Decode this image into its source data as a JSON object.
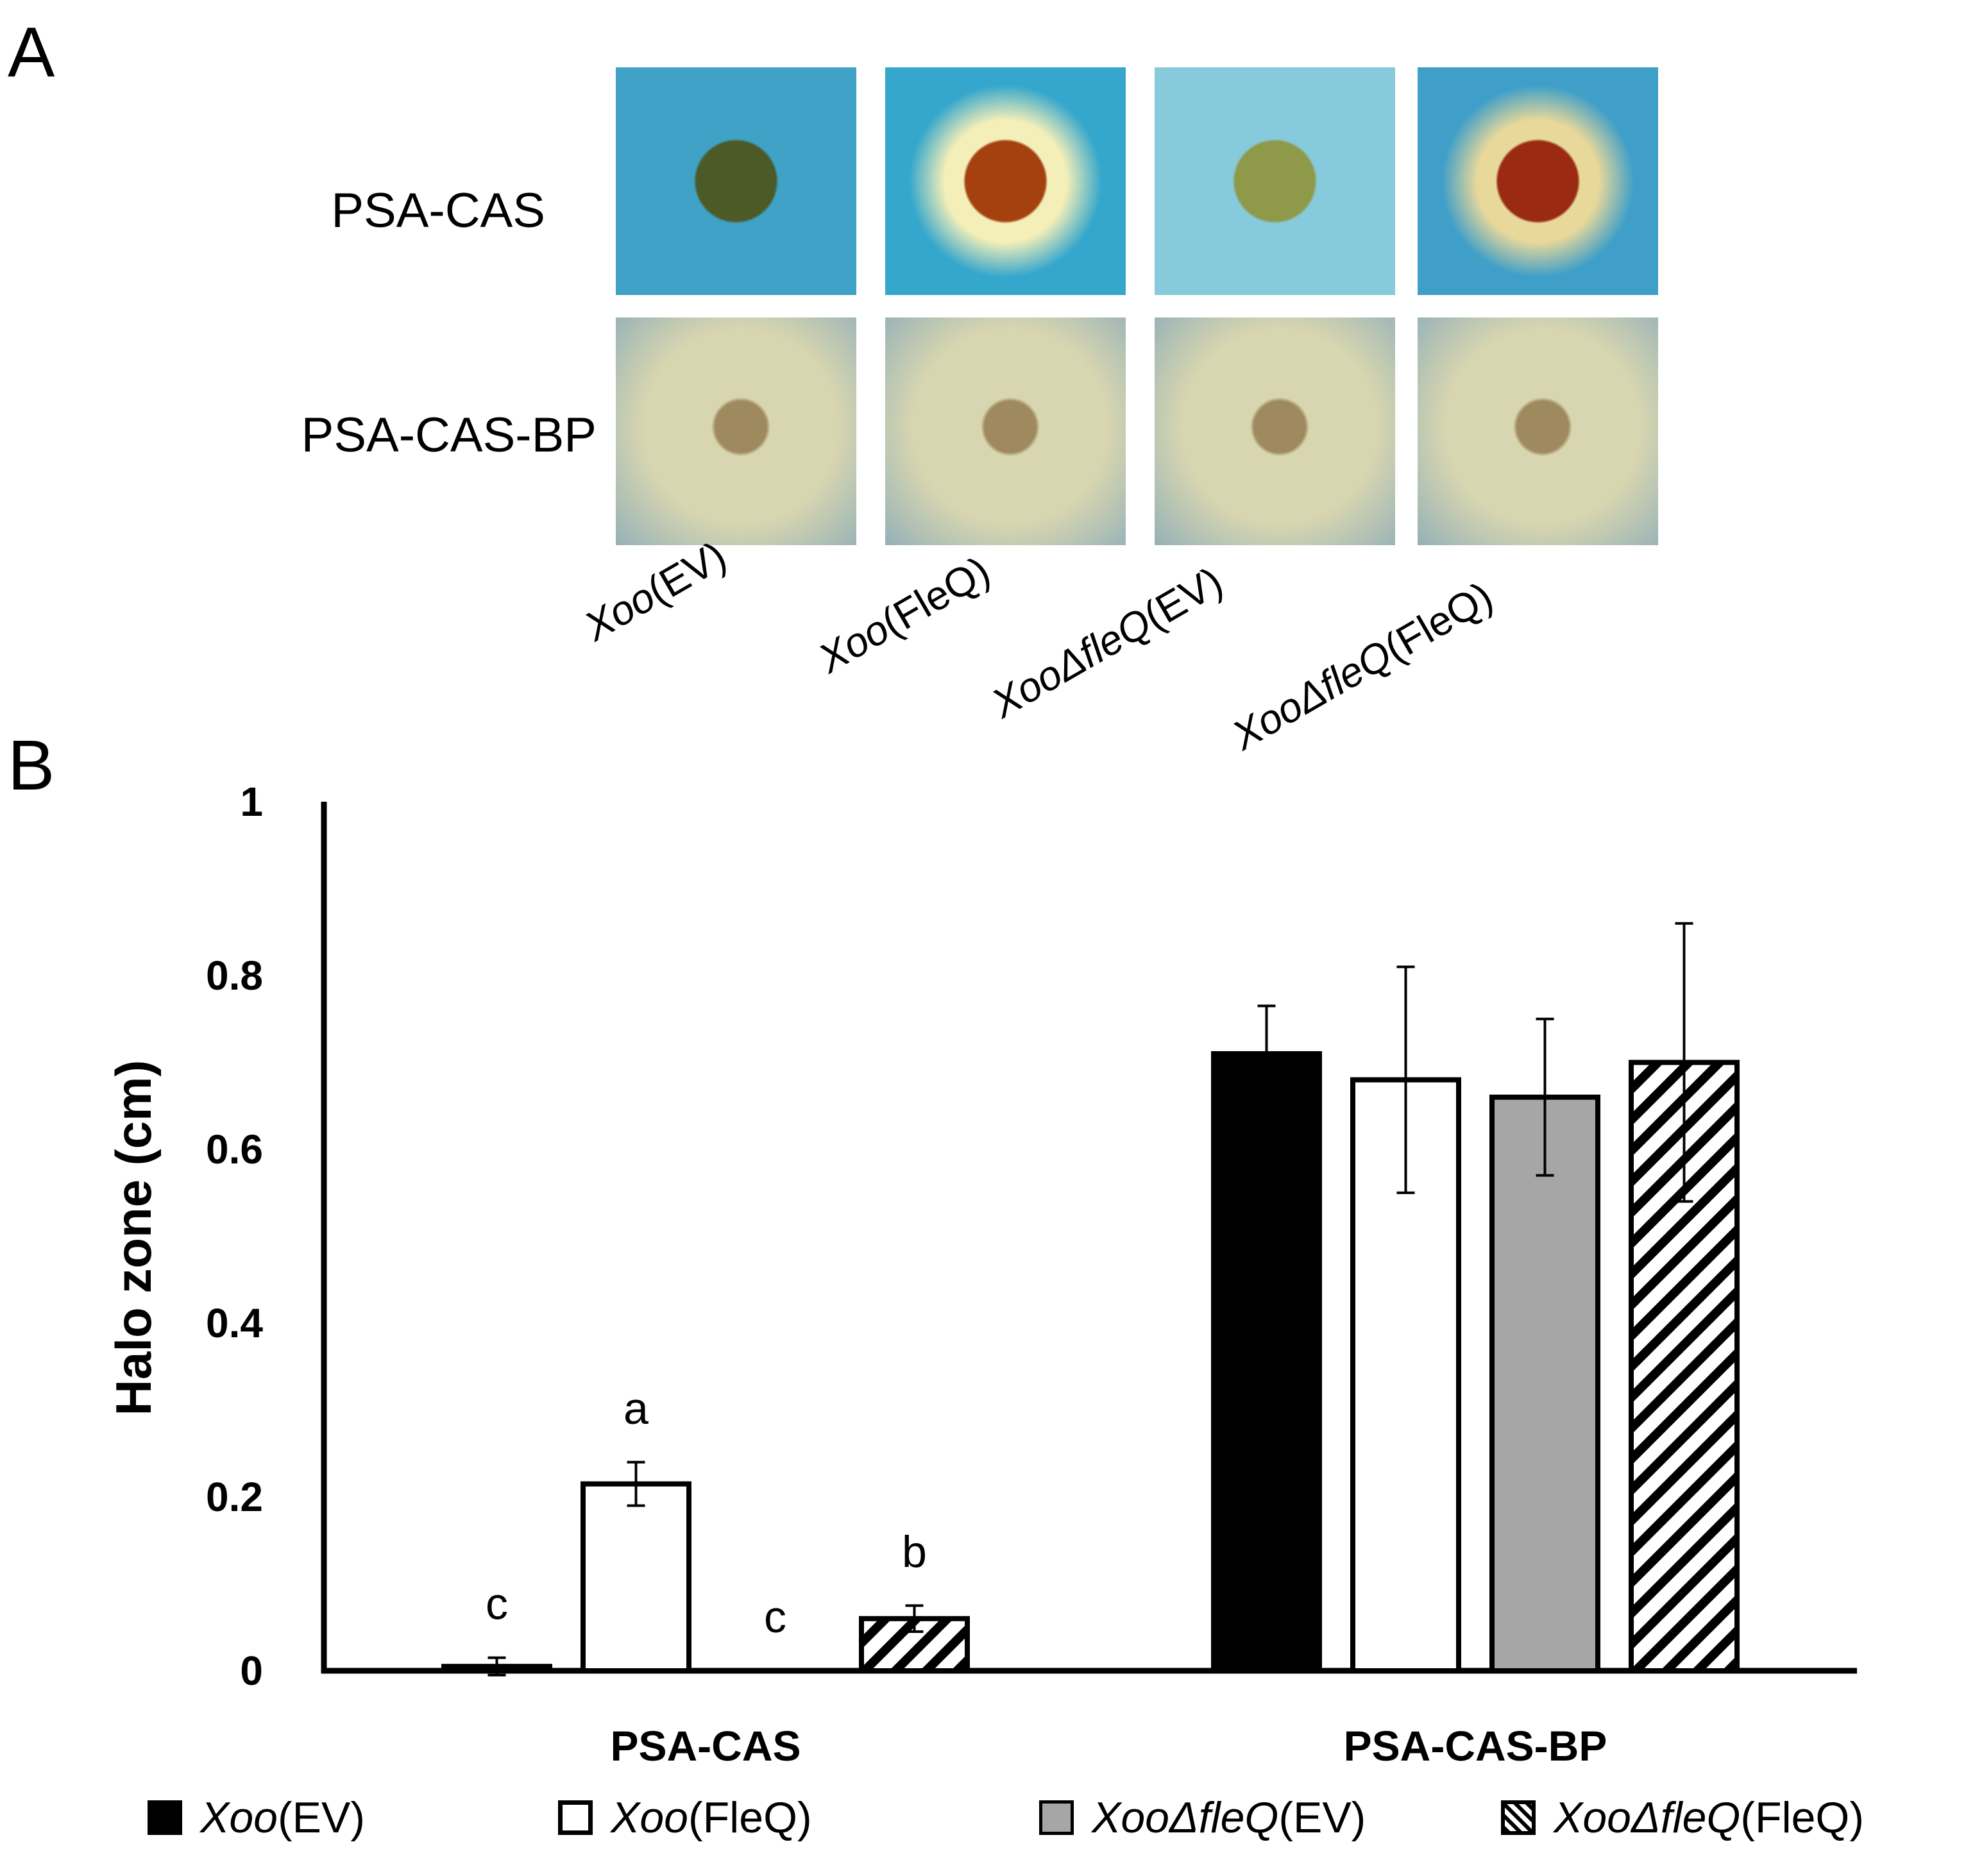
{
  "panels": {
    "a": "A",
    "b": "B"
  },
  "photo_rows": [
    "PSA-CAS",
    "PSA-CAS-BP"
  ],
  "strains": [
    {
      "italic": "Xoo",
      "rest": "(EV)"
    },
    {
      "italic": "Xoo",
      "rest": "(FleQ)"
    },
    {
      "italic": "XooΔfleQ",
      "rest": "(EV)"
    },
    {
      "italic": "XooΔfleQ",
      "rest": "(FleQ)"
    }
  ],
  "plate_colors": {
    "cas_bg": [
      "#3fa2c6",
      "#36a7cc",
      "#86cadb",
      "#3f9fc8"
    ],
    "cas_colony": [
      "#4c5a28",
      "#a5410f",
      "#8e9a4a",
      "#9a2a12"
    ],
    "cas_halo": [
      "#3fa2c6",
      "#f4efb8",
      "#86cadb",
      "#e8d89a"
    ],
    "bp_bg": "#d8d6b0",
    "bp_edge": "#88aab8",
    "bp_colony": "#9e8a5e"
  },
  "chart_data": {
    "type": "bar",
    "ylabel": "Halo zone (cm)",
    "ylim": [
      0,
      1
    ],
    "yticks": [
      "0",
      "0.2",
      "0.4",
      "0.6",
      "0.8",
      "1"
    ],
    "categories": [
      "PSA-CAS",
      "PSA-CAS-BP"
    ],
    "series": [
      {
        "name": "(EV)",
        "name_italic": "Xoo",
        "fill": "#000000",
        "pattern": "solid",
        "values": [
          0.005,
          0.71
        ],
        "errors": [
          0.01,
          0.055
        ],
        "letters": [
          "c",
          ""
        ]
      },
      {
        "name": "(FleQ)",
        "name_italic": "Xoo",
        "fill": "#ffffff",
        "pattern": "solid",
        "values": [
          0.215,
          0.68
        ],
        "errors": [
          0.025,
          0.13
        ],
        "letters": [
          "a",
          ""
        ]
      },
      {
        "name": "(EV)",
        "name_italic": "XooΔfleQ",
        "fill": "#a6a6a6",
        "pattern": "solid",
        "values": [
          0.0,
          0.66
        ],
        "errors": [
          0.0,
          0.09
        ],
        "letters": [
          "c",
          ""
        ]
      },
      {
        "name": "(FleQ)",
        "name_italic": "XooΔfleQ",
        "fill": "#ffffff",
        "pattern": "hatch",
        "values": [
          0.06,
          0.7
        ],
        "errors": [
          0.015,
          0.16
        ],
        "letters": [
          "b",
          ""
        ]
      }
    ],
    "legend_position": "bottom",
    "grid": false
  }
}
